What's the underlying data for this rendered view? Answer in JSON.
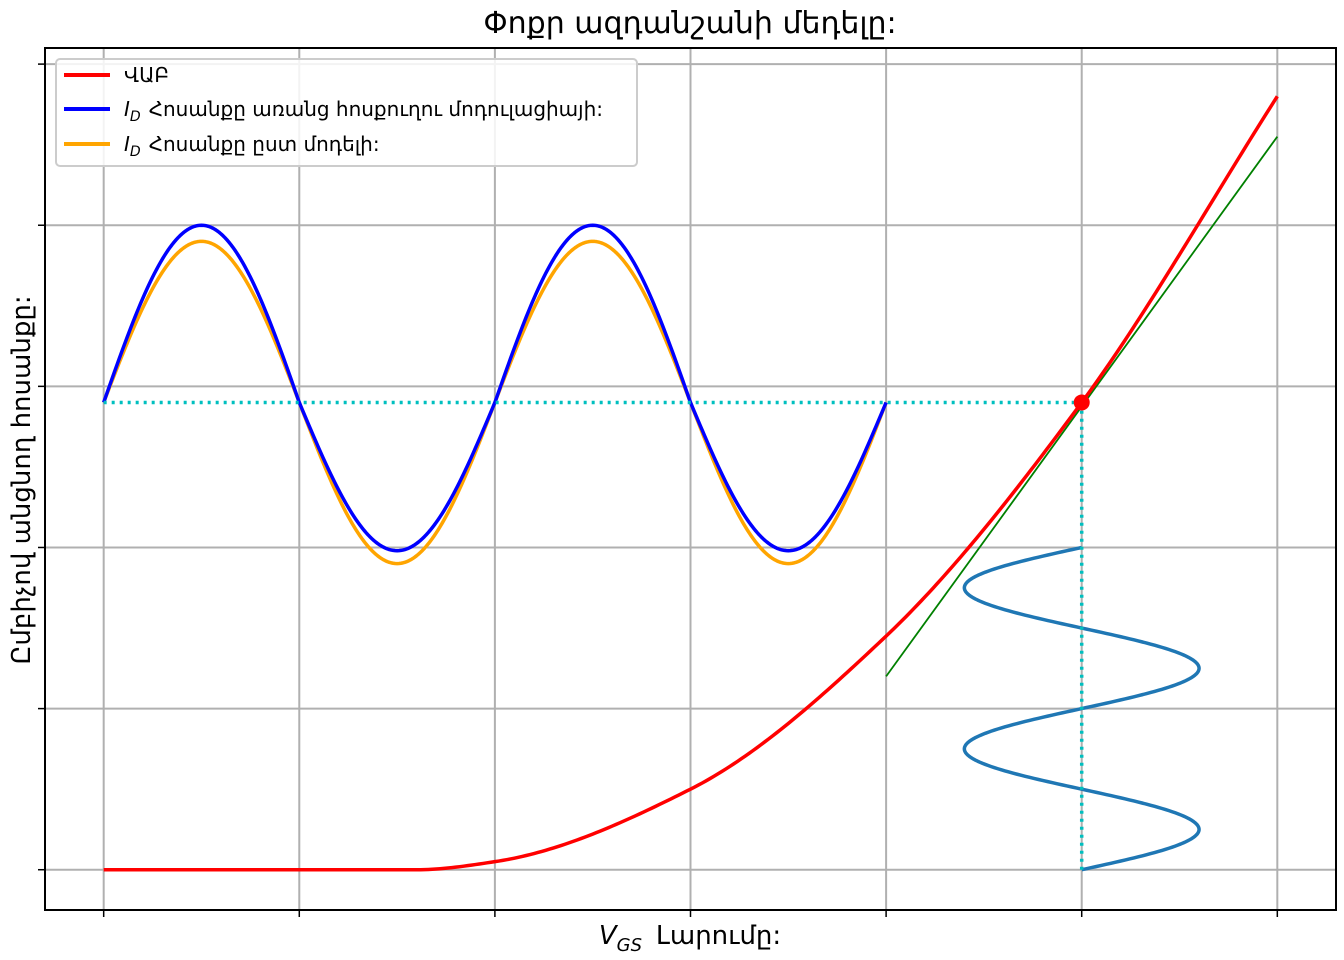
{
  "chart_data": {
    "type": "line",
    "title": "Փոքր ազդանշանի մեդելը:",
    "xlabel": {
      "symbol": "V",
      "subscript": "GS",
      "text": "Լարումը:"
    },
    "ylabel": "Ըմբիչով անցնող հոսանքը:",
    "xlim": [
      -0.3,
      6.3
    ],
    "ylim": [
      -0.25,
      5.1
    ],
    "xticks": [
      0,
      1,
      2,
      3,
      4,
      5,
      6
    ],
    "yticks": [
      0,
      1,
      2,
      3,
      4,
      5
    ],
    "grid": true,
    "tick_labels_visible": false,
    "legend": {
      "location": "upper-left",
      "entries": [
        {
          "symbol": "",
          "subscript": "",
          "text": "ՎԱԲ",
          "color": "#ff0000"
        },
        {
          "symbol": "I",
          "subscript": "D",
          "text": "Հոսանքը առանց հոսքուղու մոդուլացիայի:",
          "color": "#0000ff"
        },
        {
          "symbol": "I",
          "subscript": "D",
          "text": "Հոսանքը ըստ մոդելի:",
          "color": "#ffa500"
        }
      ]
    },
    "series": [
      {
        "name": "ՎԱԲ",
        "color": "#ff0000",
        "kind": "transfer_curve",
        "threshold_x": 1.6,
        "x_range": [
          0,
          6
        ],
        "points": [
          [
            0,
            0
          ],
          [
            1.6,
            0
          ],
          [
            2,
            0.05
          ],
          [
            3,
            0.5
          ],
          [
            4,
            1.45
          ],
          [
            5,
            2.9
          ],
          [
            6,
            4.8
          ]
        ]
      },
      {
        "name": "ID Հոսանքը առանց հոսքուղու մոդուլացիայի:",
        "color": "#0000ff",
        "kind": "output_wave",
        "x_range": [
          0,
          4
        ],
        "center": 2.9,
        "amplitude_pos": 1.1,
        "amplitude_neg": 0.92,
        "cycles": 2
      },
      {
        "name": "ID Հոսանքը ըստ մոդելի:",
        "color": "#ffa500",
        "kind": "output_wave",
        "x_range": [
          0,
          4
        ],
        "center": 2.9,
        "amplitude_pos": 1.0,
        "amplitude_neg": 1.0,
        "cycles": 2
      }
    ],
    "tangent": {
      "color": "#008000",
      "x_range": [
        4,
        6
      ],
      "points": [
        [
          4,
          1.2
        ],
        [
          6,
          4.55
        ]
      ]
    },
    "input_wave": {
      "color": "#1f77b4",
      "center_x": 5.0,
      "amplitude": 0.6,
      "y_range": [
        0,
        2
      ],
      "cycles": 2
    },
    "operating_point": {
      "x": 5.0,
      "y": 2.9,
      "color": "#ff0000"
    },
    "guides": {
      "color": "#00bfbf",
      "horizontal": {
        "y": 2.9,
        "x_range": [
          0,
          5
        ]
      },
      "vertical": {
        "x": 5.0,
        "y_range": [
          0,
          2.9
        ]
      }
    }
  }
}
